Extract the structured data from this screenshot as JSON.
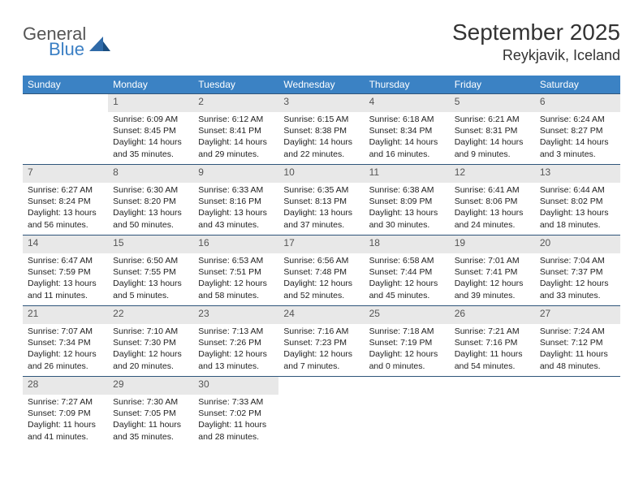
{
  "logo": {
    "general": "General",
    "blue": "Blue"
  },
  "title": "September 2025",
  "location": "Reykjavik, Iceland",
  "colors": {
    "header_bg": "#3b82c4",
    "daynum_bg": "#e8e8e8",
    "rule": "#2f557a",
    "logo_blue": "#3b7fc4",
    "text": "#222222",
    "background": "#ffffff"
  },
  "weekdays": [
    "Sunday",
    "Monday",
    "Tuesday",
    "Wednesday",
    "Thursday",
    "Friday",
    "Saturday"
  ],
  "weeks": [
    [
      null,
      {
        "n": "1",
        "sr": "6:09 AM",
        "ss": "8:45 PM",
        "dl": "14 hours and 35 minutes."
      },
      {
        "n": "2",
        "sr": "6:12 AM",
        "ss": "8:41 PM",
        "dl": "14 hours and 29 minutes."
      },
      {
        "n": "3",
        "sr": "6:15 AM",
        "ss": "8:38 PM",
        "dl": "14 hours and 22 minutes."
      },
      {
        "n": "4",
        "sr": "6:18 AM",
        "ss": "8:34 PM",
        "dl": "14 hours and 16 minutes."
      },
      {
        "n": "5",
        "sr": "6:21 AM",
        "ss": "8:31 PM",
        "dl": "14 hours and 9 minutes."
      },
      {
        "n": "6",
        "sr": "6:24 AM",
        "ss": "8:27 PM",
        "dl": "14 hours and 3 minutes."
      }
    ],
    [
      {
        "n": "7",
        "sr": "6:27 AM",
        "ss": "8:24 PM",
        "dl": "13 hours and 56 minutes."
      },
      {
        "n": "8",
        "sr": "6:30 AM",
        "ss": "8:20 PM",
        "dl": "13 hours and 50 minutes."
      },
      {
        "n": "9",
        "sr": "6:33 AM",
        "ss": "8:16 PM",
        "dl": "13 hours and 43 minutes."
      },
      {
        "n": "10",
        "sr": "6:35 AM",
        "ss": "8:13 PM",
        "dl": "13 hours and 37 minutes."
      },
      {
        "n": "11",
        "sr": "6:38 AM",
        "ss": "8:09 PM",
        "dl": "13 hours and 30 minutes."
      },
      {
        "n": "12",
        "sr": "6:41 AM",
        "ss": "8:06 PM",
        "dl": "13 hours and 24 minutes."
      },
      {
        "n": "13",
        "sr": "6:44 AM",
        "ss": "8:02 PM",
        "dl": "13 hours and 18 minutes."
      }
    ],
    [
      {
        "n": "14",
        "sr": "6:47 AM",
        "ss": "7:59 PM",
        "dl": "13 hours and 11 minutes."
      },
      {
        "n": "15",
        "sr": "6:50 AM",
        "ss": "7:55 PM",
        "dl": "13 hours and 5 minutes."
      },
      {
        "n": "16",
        "sr": "6:53 AM",
        "ss": "7:51 PM",
        "dl": "12 hours and 58 minutes."
      },
      {
        "n": "17",
        "sr": "6:56 AM",
        "ss": "7:48 PM",
        "dl": "12 hours and 52 minutes."
      },
      {
        "n": "18",
        "sr": "6:58 AM",
        "ss": "7:44 PM",
        "dl": "12 hours and 45 minutes."
      },
      {
        "n": "19",
        "sr": "7:01 AM",
        "ss": "7:41 PM",
        "dl": "12 hours and 39 minutes."
      },
      {
        "n": "20",
        "sr": "7:04 AM",
        "ss": "7:37 PM",
        "dl": "12 hours and 33 minutes."
      }
    ],
    [
      {
        "n": "21",
        "sr": "7:07 AM",
        "ss": "7:34 PM",
        "dl": "12 hours and 26 minutes."
      },
      {
        "n": "22",
        "sr": "7:10 AM",
        "ss": "7:30 PM",
        "dl": "12 hours and 20 minutes."
      },
      {
        "n": "23",
        "sr": "7:13 AM",
        "ss": "7:26 PM",
        "dl": "12 hours and 13 minutes."
      },
      {
        "n": "24",
        "sr": "7:16 AM",
        "ss": "7:23 PM",
        "dl": "12 hours and 7 minutes."
      },
      {
        "n": "25",
        "sr": "7:18 AM",
        "ss": "7:19 PM",
        "dl": "12 hours and 0 minutes."
      },
      {
        "n": "26",
        "sr": "7:21 AM",
        "ss": "7:16 PM",
        "dl": "11 hours and 54 minutes."
      },
      {
        "n": "27",
        "sr": "7:24 AM",
        "ss": "7:12 PM",
        "dl": "11 hours and 48 minutes."
      }
    ],
    [
      {
        "n": "28",
        "sr": "7:27 AM",
        "ss": "7:09 PM",
        "dl": "11 hours and 41 minutes."
      },
      {
        "n": "29",
        "sr": "7:30 AM",
        "ss": "7:05 PM",
        "dl": "11 hours and 35 minutes."
      },
      {
        "n": "30",
        "sr": "7:33 AM",
        "ss": "7:02 PM",
        "dl": "11 hours and 28 minutes."
      },
      null,
      null,
      null,
      null
    ]
  ],
  "labels": {
    "sunrise": "Sunrise:",
    "sunset": "Sunset:",
    "daylight": "Daylight:"
  }
}
